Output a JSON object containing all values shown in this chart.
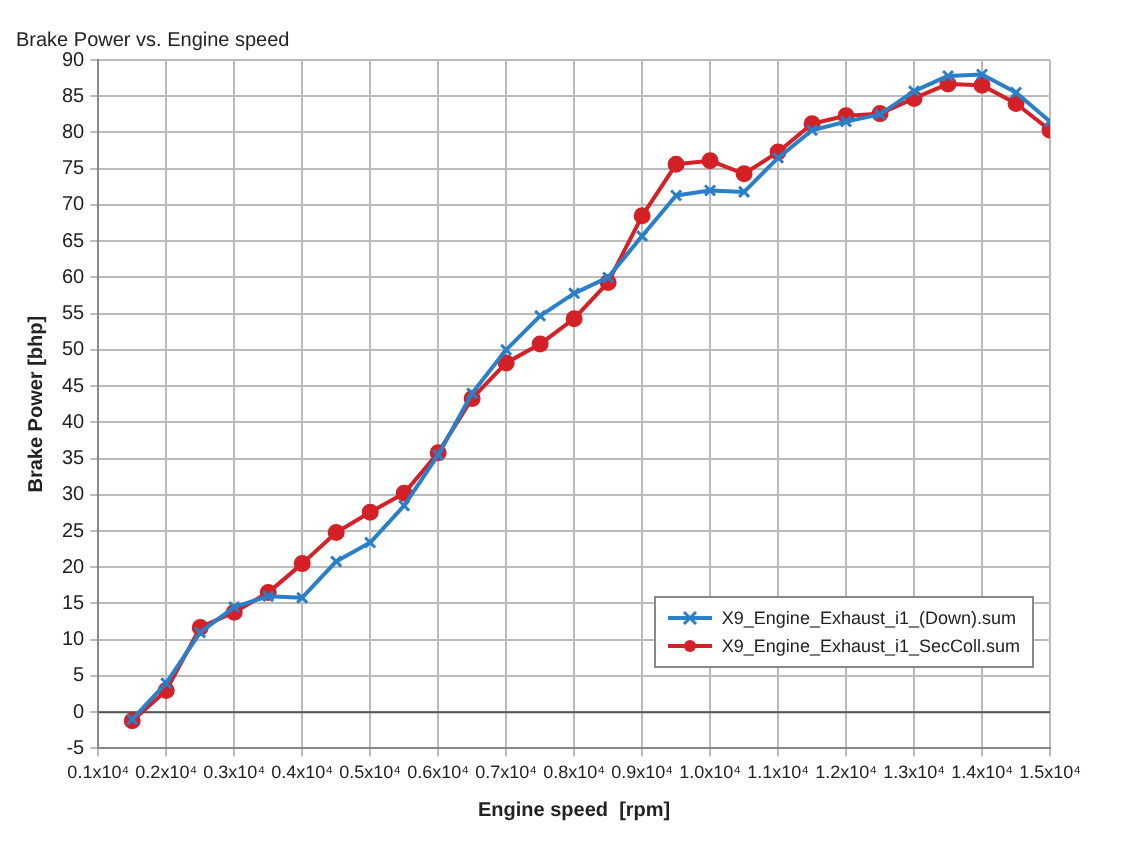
{
  "chart_data": {
    "type": "line",
    "title": "Brake Power vs. Engine speed",
    "xlabel": "Engine speed  [rpm]",
    "ylabel": "Brake Power [bhp]",
    "x": [
      1500,
      2000,
      2500,
      3000,
      3500,
      4000,
      4500,
      5000,
      5500,
      6000,
      6500,
      7000,
      7500,
      8000,
      8500,
      9000,
      9500,
      10000,
      10500,
      11000,
      11500,
      12000,
      12500,
      13000,
      13500,
      14000,
      14500,
      15000
    ],
    "series": [
      {
        "name": "X9_Engine_Exhaust_i1_(Down).sum",
        "color": "#2a7fc9",
        "marker": "cross",
        "values": [
          -1,
          4,
          11,
          14.5,
          16,
          15.8,
          20.8,
          23.4,
          28.5,
          35.5,
          44,
          50,
          54.7,
          57.8,
          60,
          65.7,
          71.3,
          72,
          71.8,
          76.5,
          80.3,
          81.5,
          82.5,
          85.7,
          87.8,
          88,
          85.5,
          81.5
        ]
      },
      {
        "name": "X9_Engine_Exhaust_i1_SecColl.sum",
        "color": "#d42027",
        "marker": "circle",
        "values": [
          -1.2,
          3,
          11.7,
          13.8,
          16.5,
          20.5,
          24.8,
          27.6,
          30.2,
          35.8,
          43.3,
          48.2,
          50.8,
          54.3,
          59.3,
          68.5,
          75.6,
          76.1,
          74.3,
          77.3,
          81.2,
          82.3,
          82.6,
          84.7,
          86.7,
          86.5,
          84,
          80.3
        ]
      }
    ],
    "xlim": [
      1000,
      15000
    ],
    "xticks": [
      {
        "value": 1000,
        "label": "0.1x10⁴"
      },
      {
        "value": 2000,
        "label": "0.2x10⁴"
      },
      {
        "value": 3000,
        "label": "0.3x10⁴"
      },
      {
        "value": 4000,
        "label": "0.4x10⁴"
      },
      {
        "value": 5000,
        "label": "0.5x10⁴"
      },
      {
        "value": 6000,
        "label": "0.6x10⁴"
      },
      {
        "value": 7000,
        "label": "0.7x10⁴"
      },
      {
        "value": 8000,
        "label": "0.8x10⁴"
      },
      {
        "value": 9000,
        "label": "0.9x10⁴"
      },
      {
        "value": 10000,
        "label": "1.0x10⁴"
      },
      {
        "value": 11000,
        "label": "1.1x10⁴"
      },
      {
        "value": 12000,
        "label": "1.2x10⁴"
      },
      {
        "value": 13000,
        "label": "1.3x10⁴"
      },
      {
        "value": 14000,
        "label": "1.4x10⁴"
      },
      {
        "value": 15000,
        "label": "1.5x10⁴"
      }
    ],
    "ylim": [
      -5,
      90
    ],
    "yticks": [
      -5,
      0,
      5,
      10,
      15,
      20,
      25,
      30,
      35,
      40,
      45,
      50,
      55,
      60,
      65,
      70,
      75,
      80,
      85,
      90
    ],
    "ref_lines": [
      {
        "axis": "y",
        "value": 0,
        "color": "#555555"
      }
    ],
    "grid": true,
    "legend": "right",
    "line_style": "solid"
  }
}
